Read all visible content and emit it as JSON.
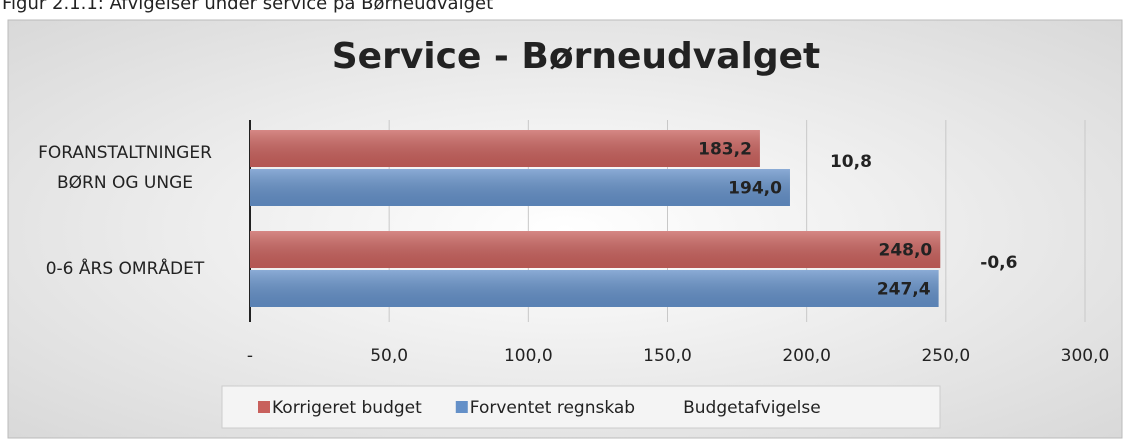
{
  "caption": "Figur 2.1.1: Afvigelser under service på Børneudvalget",
  "chart_data": {
    "type": "hbar",
    "title": "Service - Børneudvalget",
    "categories": [
      [
        "FORANSTALTNINGER",
        "BØRN OG UNGE"
      ],
      [
        "0-6 ÅRS OMRÅDET"
      ]
    ],
    "series": [
      {
        "name": "Korrigeret budget",
        "color": "#c8605c",
        "values": [
          183.2,
          248.0
        ],
        "value_labels": [
          "183,2",
          "248,0"
        ]
      },
      {
        "name": "Forventet regnskab",
        "color": "#6490c8",
        "values": [
          194.0,
          247.4
        ],
        "value_labels": [
          "194,0",
          "247,4"
        ]
      },
      {
        "name": "Budgetafvigelse",
        "color": "transparent",
        "values": [
          10.8,
          -0.6
        ],
        "value_labels": [
          "10,8",
          "-0,6"
        ]
      }
    ],
    "xlim": [
      0,
      300
    ],
    "xticks": [
      {
        "value": 0,
        "label": "-"
      },
      {
        "value": 50,
        "label": "50,0"
      },
      {
        "value": 100,
        "label": "100,0"
      },
      {
        "value": 150,
        "label": "150,0"
      },
      {
        "value": 200,
        "label": "200,0"
      },
      {
        "value": 250,
        "label": "250,0"
      },
      {
        "value": 300,
        "label": "300,0"
      }
    ],
    "grid": true,
    "legend": "bottom"
  }
}
